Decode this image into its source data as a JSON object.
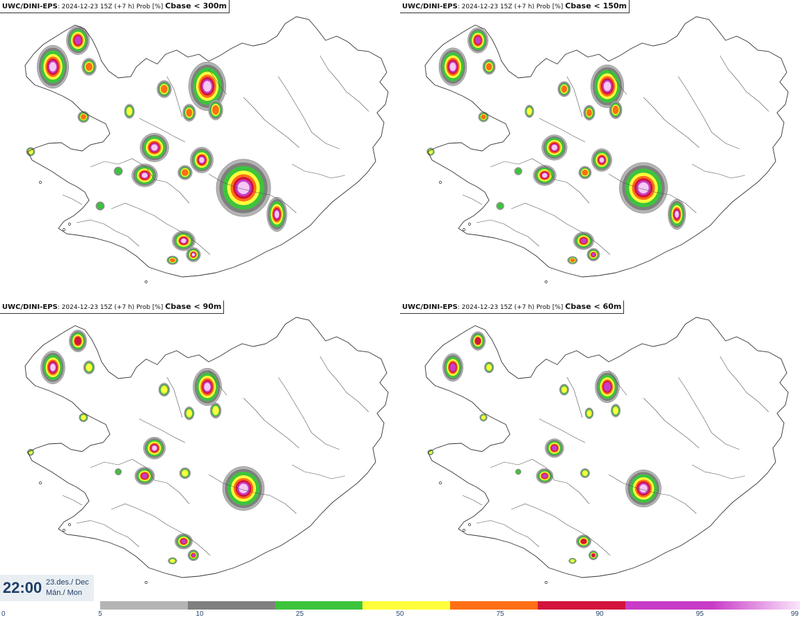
{
  "panels": [
    {
      "model": "UWC/DINI-EPS",
      "run": ": 2024-12-23 15Z (+7 h) Prob [%] ",
      "cbase": "Cbase < 300m",
      "level": 4
    },
    {
      "model": "UWC/DINI-EPS",
      "run": ": 2024-12-23 15Z (+7 h) Prob [%] ",
      "cbase": "Cbase < 150m",
      "level": 3
    },
    {
      "model": "UWC/DINI-EPS",
      "run": ": 2024-12-23 15Z (+7 h) Prob [%] ",
      "cbase": "Cbase < 90m",
      "level": 2
    },
    {
      "model": "UWC/DINI-EPS",
      "run": ": 2024-12-23 15Z (+7 h) Prob [%] ",
      "cbase": "Cbase < 60m",
      "level": 1
    }
  ],
  "valid_time": {
    "clock": "22:00",
    "date_line1": "23.des./ Dec",
    "date_line2": "Mán./ Mon"
  },
  "legend": {
    "labels": [
      "0",
      "5",
      "10",
      "25",
      "50",
      "75",
      "90",
      "95",
      "99"
    ],
    "colors": [
      "#b4b4b4",
      "#7f7f7f",
      "#3cc43c",
      "#ffff3c",
      "#ff6e14",
      "#d2143c",
      "#c83cc8",
      "#f5c8f5"
    ]
  },
  "colors": {
    "land_line": "#555555",
    "coast": "#333333"
  }
}
